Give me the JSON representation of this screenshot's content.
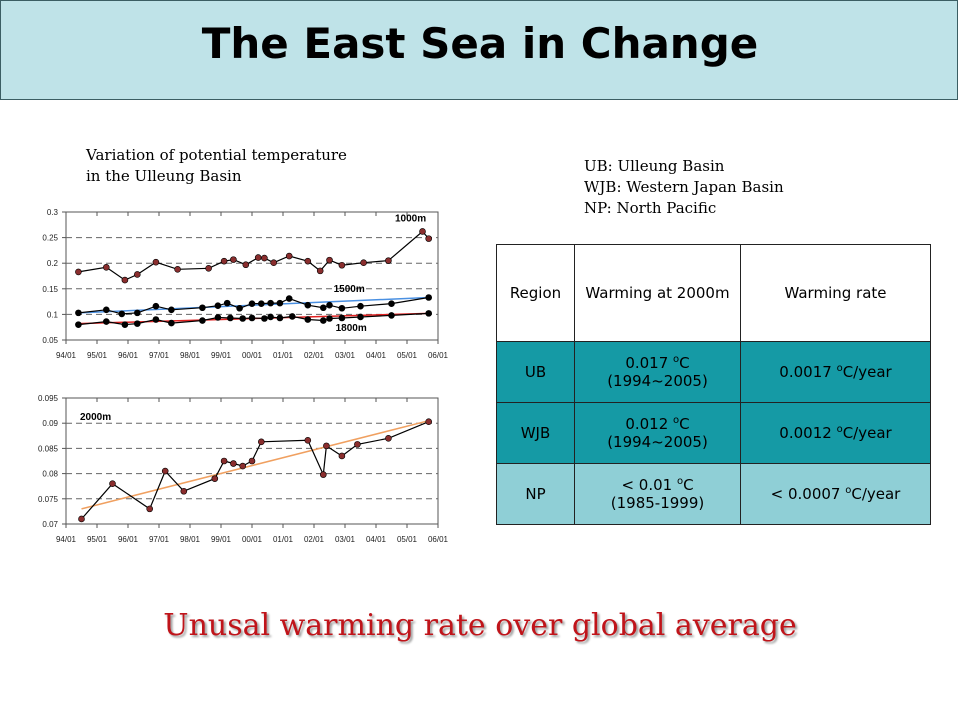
{
  "header": {
    "title": "The East Sea in Change"
  },
  "caption": {
    "line1": "Variation of potential temperature",
    "line2": "in the Ulleung Basin"
  },
  "abbreviations": [
    "UB: Ulleung Basin",
    "WJB: Western Japan Basin",
    "NP: North Pacific"
  ],
  "table": {
    "headers": [
      "Region",
      "Warming at 2000m",
      "Warming rate"
    ],
    "rows": [
      {
        "region": "UB",
        "warming_value": "0.017 ",
        "warming_unit": "C",
        "warming_period": "(1994~2005)",
        "rate_prefix": "0.0017 ",
        "rate_unit": "C/year"
      },
      {
        "region": "WJB",
        "warming_value": "0.012 ",
        "warming_unit": "C",
        "warming_period": "(1994~2005)",
        "rate_prefix": "0.0012 ",
        "rate_unit": "C/year"
      },
      {
        "region": "NP",
        "warming_value": "< 0.01 ",
        "warming_unit": "C",
        "warming_period": "(1985-1999)",
        "rate_prefix": "< 0.0007 ",
        "rate_unit": "C/year"
      }
    ],
    "degree_symbol": "o",
    "colors": {
      "dark_row": "#159aa5",
      "light_row": "#8fcfd6"
    }
  },
  "conclusion": "Unusal warming rate over global average",
  "chart_data": [
    {
      "type": "line",
      "title": "",
      "xlabel": "",
      "ylabel": "",
      "xticks": [
        "94/01",
        "95/01",
        "96/01",
        "97/01",
        "98/01",
        "99/01",
        "00/01",
        "01/01",
        "02/01",
        "03/01",
        "04/01",
        "05/01",
        "06/01"
      ],
      "xlim": [
        1994.0,
        2006.0
      ],
      "ylim": [
        0.05,
        0.3
      ],
      "yticks": [
        "0.05",
        "0.1",
        "0.15",
        "0.2",
        "0.25",
        "0.3"
      ],
      "grid": "dashed horizontal",
      "series": [
        {
          "name": "1000m",
          "color": "#000000",
          "trend_color": "#000000",
          "x": [
            1994.4,
            1995.3,
            1995.9,
            1996.3,
            1996.9,
            1997.6,
            1998.6,
            1999.1,
            1999.4,
            1999.8,
            2000.2,
            2000.4,
            2000.7,
            2001.2,
            2001.8,
            2002.2,
            2002.5,
            2002.9,
            2003.6,
            2004.4,
            2005.5,
            2005.7
          ],
          "y": [
            0.183,
            0.192,
            0.167,
            0.178,
            0.202,
            0.188,
            0.19,
            0.204,
            0.207,
            0.197,
            0.211,
            0.21,
            0.201,
            0.214,
            0.204,
            0.185,
            0.206,
            0.196,
            0.201,
            0.205,
            0.262,
            0.248
          ]
        },
        {
          "name": "1500m",
          "color": "#000000",
          "trend_color": "#4a90e2",
          "trend": [
            [
              1994.4,
              0.103
            ],
            [
              2005.7,
              0.133
            ]
          ],
          "x": [
            1994.4,
            1995.3,
            1995.8,
            1996.3,
            1996.9,
            1997.4,
            1998.4,
            1998.9,
            1999.2,
            1999.6,
            2000.0,
            2000.3,
            2000.6,
            2000.9,
            2001.2,
            2001.8,
            2002.3,
            2002.5,
            2002.9,
            2003.5,
            2004.5,
            2005.7
          ],
          "y": [
            0.103,
            0.109,
            0.101,
            0.103,
            0.116,
            0.109,
            0.113,
            0.117,
            0.122,
            0.112,
            0.121,
            0.121,
            0.122,
            0.122,
            0.131,
            0.118,
            0.113,
            0.118,
            0.112,
            0.116,
            0.121,
            0.133
          ]
        },
        {
          "name": "1800m",
          "color": "#000000",
          "trend_color": "#e02020",
          "trend": [
            [
              1994.4,
              0.082
            ],
            [
              2005.7,
              0.102
            ]
          ],
          "x": [
            1994.4,
            1995.3,
            1995.9,
            1996.3,
            1996.9,
            1997.4,
            1998.4,
            1998.9,
            1999.3,
            1999.7,
            2000.0,
            2000.4,
            2000.6,
            2000.9,
            2001.3,
            2001.8,
            2002.3,
            2002.5,
            2002.9,
            2003.5,
            2004.5,
            2005.7
          ],
          "y": [
            0.08,
            0.086,
            0.08,
            0.082,
            0.09,
            0.083,
            0.088,
            0.094,
            0.093,
            0.092,
            0.093,
            0.092,
            0.095,
            0.093,
            0.096,
            0.09,
            0.088,
            0.092,
            0.093,
            0.095,
            0.098,
            0.102
          ]
        }
      ]
    },
    {
      "type": "line",
      "title": "",
      "xlabel": "",
      "ylabel": "",
      "xticks": [
        "94/01",
        "95/01",
        "96/01",
        "97/01",
        "98/01",
        "99/01",
        "00/01",
        "01/01",
        "02/01",
        "03/01",
        "04/01",
        "05/01",
        "06/01"
      ],
      "xlim": [
        1994.0,
        2006.0
      ],
      "ylim": [
        0.07,
        0.095
      ],
      "yticks": [
        "0.07",
        "0.075",
        "0.08",
        "0.085",
        "0.09",
        "0.095"
      ],
      "grid": "dashed horizontal",
      "series": [
        {
          "name": "2000m",
          "color": "#000000",
          "trend_color": "#f0a060",
          "trend": [
            [
              1994.5,
              0.073
            ],
            [
              2005.7,
              0.0905
            ]
          ],
          "x": [
            1994.5,
            1995.5,
            1996.7,
            1997.2,
            1997.8,
            1998.8,
            1999.1,
            1999.4,
            1999.7,
            2000.0,
            2000.3,
            2001.8,
            2002.3,
            2002.4,
            2002.9,
            2003.4,
            2004.4,
            2005.7
          ],
          "y": [
            0.071,
            0.078,
            0.073,
            0.0805,
            0.0765,
            0.079,
            0.0825,
            0.082,
            0.0815,
            0.0825,
            0.0863,
            0.0866,
            0.0798,
            0.0855,
            0.0835,
            0.0858,
            0.087,
            0.0903
          ]
        }
      ]
    }
  ]
}
